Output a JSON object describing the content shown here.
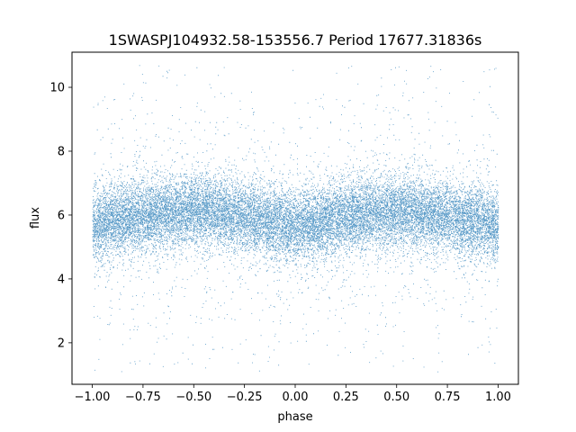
{
  "chart_data": {
    "type": "scatter",
    "title": "1SWASPJ104932.58-153556.7 Period 17677.31836s",
    "xlabel": "phase",
    "ylabel": "flux",
    "xlim": [
      -1.1,
      1.1
    ],
    "ylim": [
      0.7,
      11.1
    ],
    "xticks": [
      -1.0,
      -0.75,
      -0.5,
      -0.25,
      0.0,
      0.25,
      0.5,
      0.75,
      1.0
    ],
    "xtick_labels": [
      "−1.00",
      "−0.75",
      "−0.50",
      "−0.25",
      "0.00",
      "0.25",
      "0.50",
      "0.75",
      "1.00"
    ],
    "yticks": [
      2,
      4,
      6,
      8,
      10
    ],
    "ytick_labels": [
      "2",
      "4",
      "6",
      "8",
      "10"
    ],
    "grid": false,
    "legend": "none",
    "marker_color": "#1f77b4",
    "series": [
      {
        "phase_range": [
          -1.0,
          1.0
        ],
        "flux_range": [
          1.1,
          10.7
        ],
        "approx_points": 60000,
        "core_band": {
          "low": 4.5,
          "high": 7.2
        },
        "mean_flux_by_phase": {
          "x": [
            -1.0,
            -0.75,
            -0.5,
            -0.25,
            0.0,
            0.25,
            0.5,
            0.75,
            1.0
          ],
          "y": [
            5.7,
            6.0,
            6.15,
            5.95,
            5.65,
            5.95,
            6.15,
            5.95,
            5.7
          ]
        }
      }
    ]
  }
}
